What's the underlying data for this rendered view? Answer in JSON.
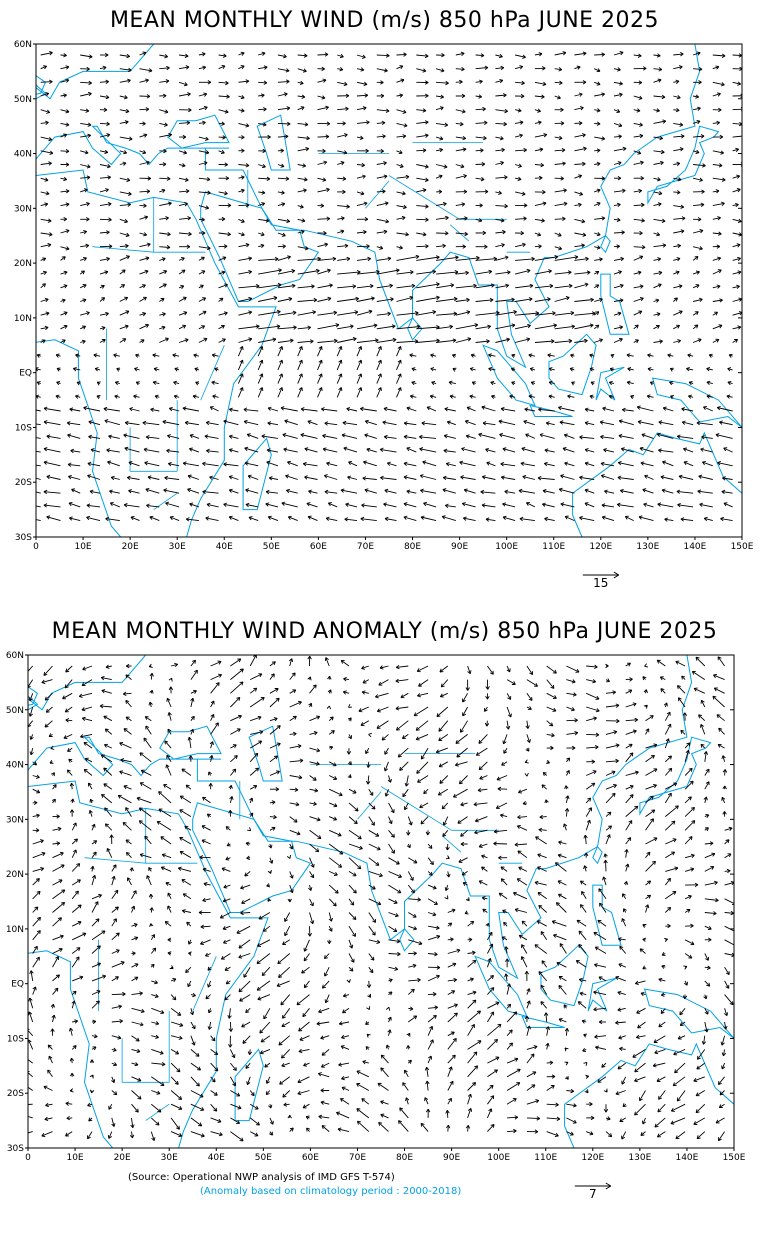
{
  "panels": [
    {
      "title": "MEAN MONTHLY WIND (m/s) 850 hPa JUNE 2025",
      "reference_vector": "15",
      "lat_labels": [
        "60N",
        "50N",
        "40N",
        "30N",
        "20N",
        "10N",
        "EQ",
        "10S",
        "20S",
        "30S"
      ],
      "lon_labels": [
        "0",
        "10E",
        "20E",
        "30E",
        "40E",
        "50E",
        "60E",
        "70E",
        "80E",
        "90E",
        "100E",
        "110E",
        "120E",
        "130E",
        "140E",
        "150E"
      ]
    },
    {
      "title": "MEAN MONTHLY WIND ANOMALY (m/s) 850 hPa JUNE 2025",
      "reference_vector": "7",
      "lat_labels": [
        "60N",
        "50N",
        "40N",
        "30N",
        "20N",
        "10N",
        "EQ",
        "10S",
        "20S",
        "30S"
      ],
      "lon_labels": [
        "0",
        "10E",
        "20E",
        "30E",
        "40E",
        "50E",
        "60E",
        "70E",
        "80E",
        "90E",
        "100E",
        "110E",
        "120E",
        "130E",
        "140E",
        "150E"
      ]
    }
  ],
  "source_text": "(Source: Operational NWP analysis of IMD GFS T-574)",
  "anomaly_note": "(Anomaly based on climatology period : 2000-2018)",
  "colors": {
    "coast": "#00a2e8",
    "vectors": "#000000",
    "frame": "#000000"
  }
}
